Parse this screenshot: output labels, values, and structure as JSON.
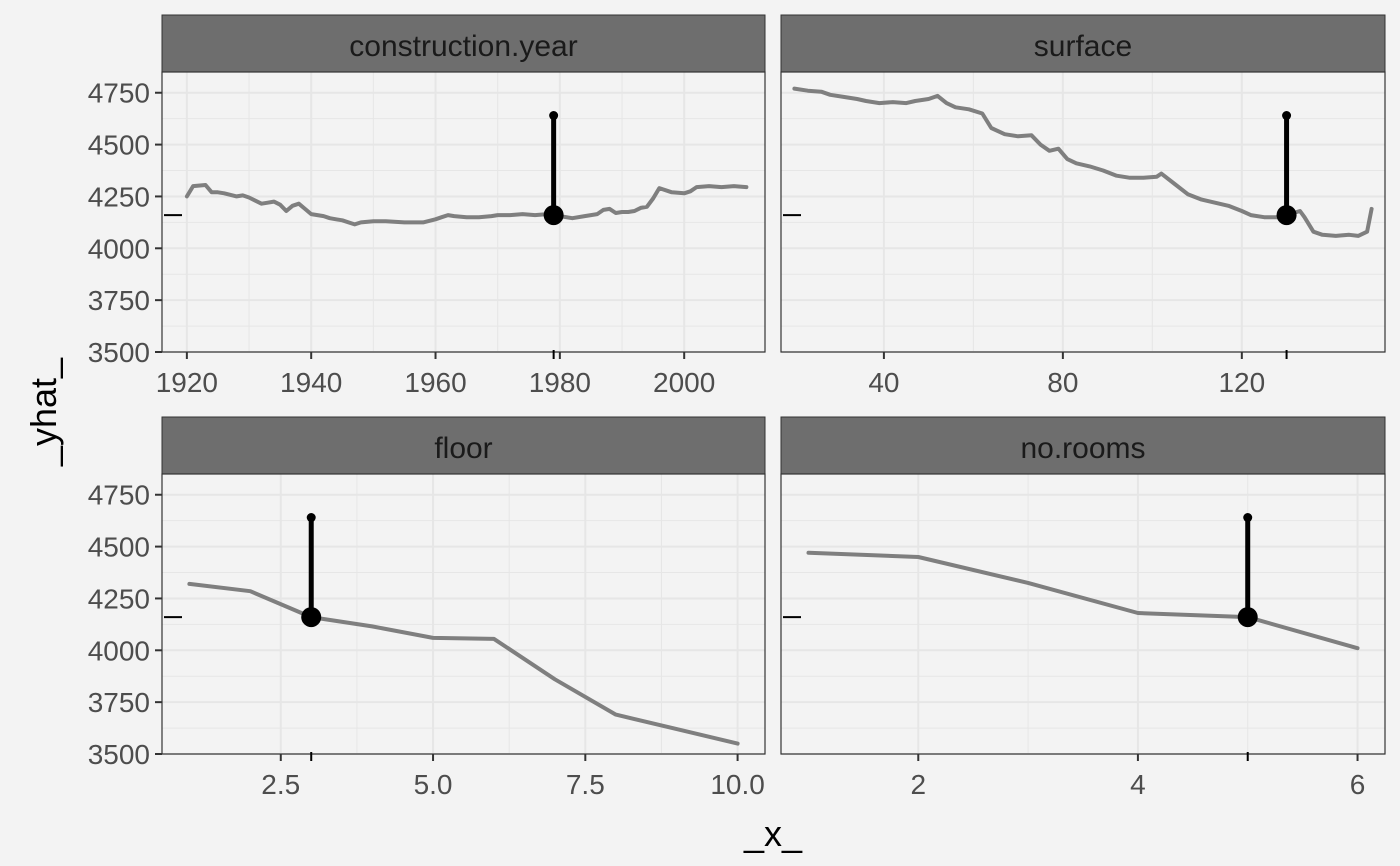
{
  "chart_data": {
    "type": "line",
    "xlabel": "_x_",
    "ylabel": "_yhat_",
    "observation_yhat": 4160,
    "original_yhat": 4640,
    "y_ticks": [
      3500,
      3750,
      4000,
      4250,
      4500,
      4750
    ],
    "ylim": [
      3500,
      4850
    ],
    "grid": true,
    "colors": {
      "background": "#f3f3f3",
      "panel": "#f3f3f3",
      "strip": "#6e6e6e",
      "line": "#7f7f7f",
      "marker": "#000000",
      "grid": "#e6e6e6"
    },
    "panels": [
      {
        "variable": "construction.year",
        "observation_x": 1979,
        "xlim": [
          1916,
          2013
        ],
        "x_ticks": [
          1920,
          1940,
          1960,
          1980,
          2000
        ],
        "x_tick_labels": [
          "1920",
          "1940",
          "1960",
          "1980",
          "2000"
        ],
        "x": [
          1920,
          1921,
          1923,
          1924,
          1925,
          1926,
          1928,
          1929,
          1930,
          1932,
          1933,
          1934,
          1935,
          1936,
          1937,
          1938,
          1939,
          1940,
          1942,
          1943,
          1944,
          1945,
          1946,
          1947,
          1948,
          1950,
          1952,
          1955,
          1958,
          1960,
          1961,
          1962,
          1963,
          1965,
          1967,
          1969,
          1970,
          1972,
          1974,
          1976,
          1978,
          1979,
          1980,
          1982,
          1984,
          1986,
          1987,
          1988,
          1989,
          1990,
          1991,
          1992,
          1993,
          1994,
          1995,
          1996,
          1998,
          2000,
          2001,
          2002,
          2004,
          2006,
          2008,
          2010
        ],
        "y": [
          4250,
          4300,
          4305,
          4270,
          4270,
          4265,
          4250,
          4255,
          4245,
          4215,
          4220,
          4225,
          4210,
          4180,
          4205,
          4215,
          4190,
          4165,
          4155,
          4145,
          4140,
          4135,
          4125,
          4115,
          4125,
          4130,
          4130,
          4125,
          4125,
          4140,
          4150,
          4160,
          4155,
          4150,
          4150,
          4155,
          4160,
          4160,
          4165,
          4160,
          4165,
          4160,
          4155,
          4145,
          4155,
          4165,
          4185,
          4190,
          4170,
          4175,
          4175,
          4180,
          4195,
          4200,
          4240,
          4290,
          4270,
          4265,
          4275,
          4295,
          4300,
          4295,
          4300,
          4295
        ]
      },
      {
        "variable": "surface",
        "observation_x": 130,
        "xlim": [
          17,
          152
        ],
        "x_ticks": [
          40,
          80,
          120
        ],
        "x_tick_labels": [
          "40",
          "80",
          "120"
        ],
        "x": [
          20,
          23,
          26,
          28,
          31,
          34,
          36,
          39,
          42,
          45,
          47,
          50,
          52,
          54,
          56,
          59,
          62,
          64,
          67,
          70,
          73,
          75,
          77,
          79,
          81,
          83,
          86,
          89,
          92,
          95,
          98,
          101,
          102,
          105,
          108,
          111,
          114,
          117,
          120,
          122,
          125,
          128,
          130,
          133,
          134,
          136,
          138,
          141,
          144,
          146,
          148,
          149
        ],
        "y": [
          4770,
          4760,
          4755,
          4740,
          4730,
          4720,
          4710,
          4700,
          4705,
          4700,
          4710,
          4720,
          4735,
          4700,
          4680,
          4670,
          4650,
          4580,
          4550,
          4540,
          4545,
          4500,
          4470,
          4480,
          4430,
          4410,
          4395,
          4375,
          4350,
          4340,
          4340,
          4345,
          4360,
          4310,
          4260,
          4235,
          4220,
          4205,
          4180,
          4160,
          4150,
          4150,
          4160,
          4180,
          4150,
          4080,
          4065,
          4060,
          4065,
          4060,
          4080,
          4190
        ]
      },
      {
        "variable": "floor",
        "observation_x": 3,
        "xlim": [
          0.55,
          10.45
        ],
        "x_ticks": [
          2.5,
          5.0,
          7.5,
          10.0
        ],
        "x_tick_labels": [
          "2.5",
          "5.0",
          "7.5",
          "10.0"
        ],
        "x": [
          1,
          2,
          3,
          4,
          5,
          6,
          7,
          8,
          9,
          10
        ],
        "y": [
          4320,
          4285,
          4160,
          4115,
          4060,
          4055,
          3860,
          3690,
          3620,
          3550
        ]
      },
      {
        "variable": "no.rooms",
        "observation_x": 5,
        "xlim": [
          0.75,
          6.25
        ],
        "x_ticks": [
          2,
          4,
          6
        ],
        "x_tick_labels": [
          "2",
          "4",
          "6"
        ],
        "x": [
          1,
          2,
          3,
          4,
          5,
          6
        ],
        "y": [
          4470,
          4450,
          4325,
          4180,
          4160,
          4010
        ]
      }
    ]
  }
}
